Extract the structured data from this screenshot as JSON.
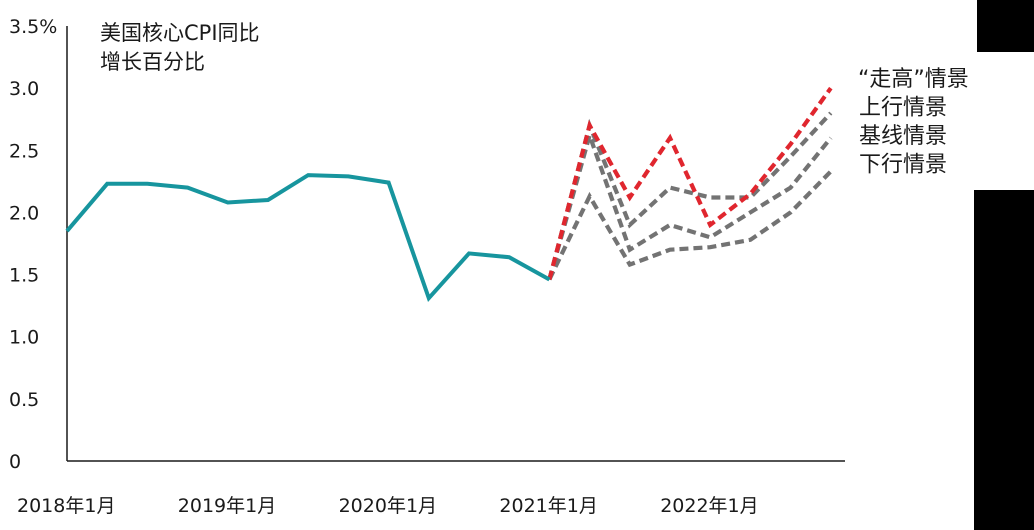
{
  "chart_data": {
    "type": "line",
    "title_lines": [
      "美国核心CPI同比",
      "增长百分比"
    ],
    "xlabel": "",
    "ylabel": "",
    "ylim": [
      0,
      3.5
    ],
    "y_ticks": [
      "3.5%",
      "3.0",
      "2.5",
      "2.0",
      "1.5",
      "1.0",
      "0.5",
      "0"
    ],
    "y_tick_values": [
      3.5,
      3.0,
      2.5,
      2.0,
      1.5,
      1.0,
      0.5,
      0
    ],
    "x_tick_labels": [
      "2018年1月",
      "2019年1月",
      "2020年1月",
      "2021年1月",
      "2022年1月"
    ],
    "x_tick_quarter_index": [
      0,
      4,
      8,
      12,
      16
    ],
    "x_unit": "quarter",
    "grid": false,
    "legend_placement": "right",
    "series": [
      {
        "key": "historical",
        "color": "#17959e",
        "style": "solid",
        "x": [
          0,
          1,
          2,
          3,
          4,
          5,
          6,
          7,
          8,
          9,
          10,
          11,
          12
        ],
        "values": [
          1.85,
          2.23,
          2.23,
          2.2,
          2.08,
          2.1,
          2.3,
          2.29,
          2.24,
          1.31,
          1.67,
          1.64,
          1.46
        ]
      },
      {
        "key": "high",
        "name": "“走高”情景",
        "color": "#e0262e",
        "style": "dashed",
        "x": [
          12,
          13,
          14,
          15,
          16,
          17,
          18,
          19
        ],
        "values": [
          1.46,
          2.7,
          2.12,
          2.6,
          1.9,
          2.15,
          2.55,
          3.0
        ]
      },
      {
        "key": "upper",
        "name": "上行情景",
        "color": "#737373",
        "style": "dashed",
        "x": [
          12,
          13,
          14,
          15,
          16,
          17,
          18,
          19
        ],
        "values": [
          1.46,
          2.7,
          1.9,
          2.2,
          2.12,
          2.12,
          2.45,
          2.8
        ]
      },
      {
        "key": "baseline",
        "name": "基线情景",
        "color": "#737373",
        "style": "dashed",
        "x": [
          12,
          13,
          14,
          15,
          16,
          17,
          18,
          19
        ],
        "values": [
          1.46,
          2.62,
          1.7,
          1.9,
          1.8,
          2.0,
          2.2,
          2.6
        ]
      },
      {
        "key": "lower",
        "name": "下行情景",
        "color": "#737373",
        "style": "dashed",
        "x": [
          12,
          13,
          14,
          15,
          16,
          17,
          18,
          19
        ],
        "values": [
          1.46,
          2.13,
          1.58,
          1.7,
          1.72,
          1.78,
          2.0,
          2.33
        ]
      }
    ]
  }
}
